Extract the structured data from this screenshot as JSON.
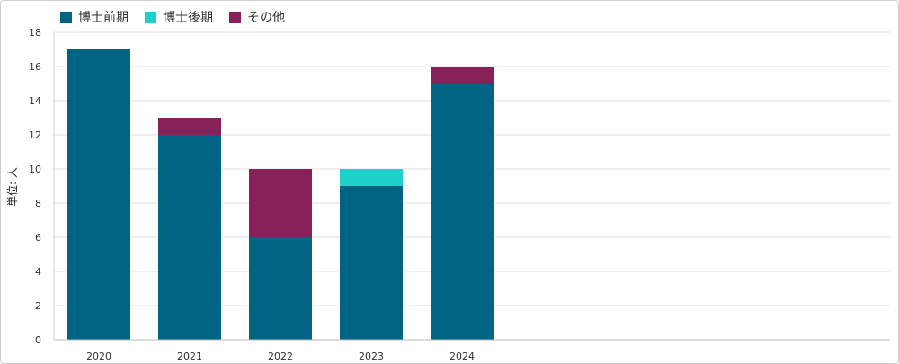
{
  "chart_data": {
    "type": "bar",
    "stacked": true,
    "categories": [
      "2020",
      "2021",
      "2022",
      "2023",
      "2024"
    ],
    "series": [
      {
        "name": "博士前期",
        "color": "#006482",
        "values": [
          17,
          12,
          6,
          9,
          15
        ]
      },
      {
        "name": "博士後期",
        "color": "#1ecfca",
        "values": [
          0,
          0,
          0,
          1,
          0
        ]
      },
      {
        "name": "その他",
        "color": "#88215a",
        "values": [
          0,
          1,
          4,
          0,
          1
        ]
      }
    ],
    "ylabel": "単位: 人",
    "ylim": [
      0,
      18
    ],
    "yticks": [
      0,
      2,
      4,
      6,
      8,
      10,
      12,
      14,
      16,
      18
    ],
    "grid": true,
    "legend_position": "top-left"
  }
}
